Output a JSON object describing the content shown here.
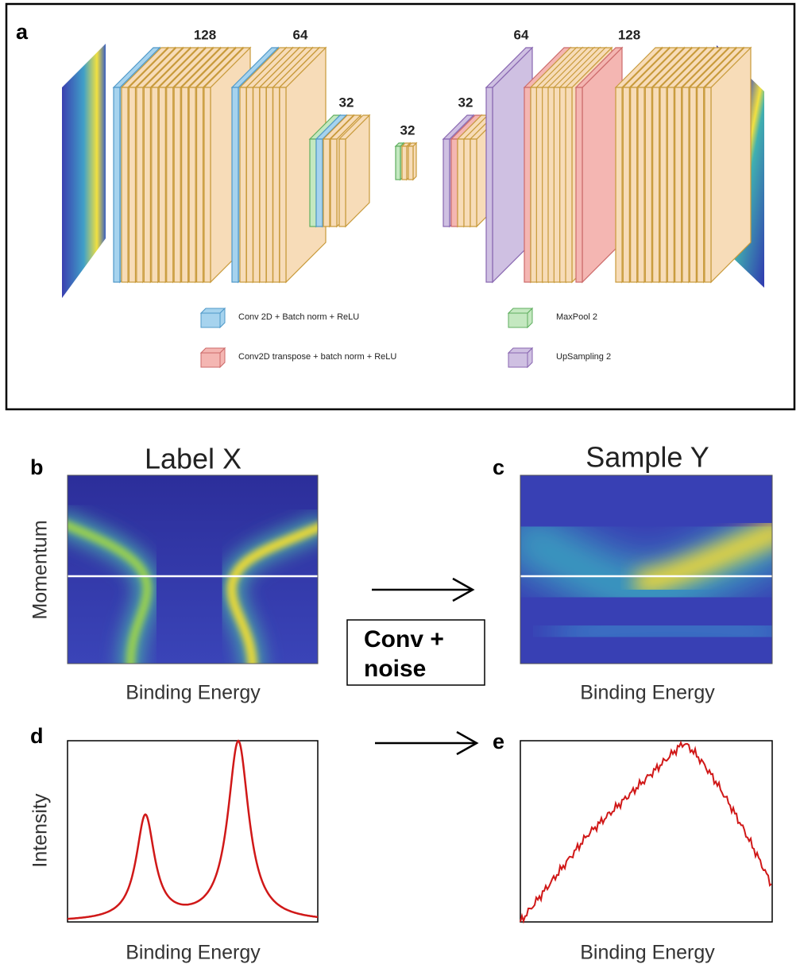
{
  "panel_a": {
    "label": "a",
    "block_sizes": [
      128,
      64,
      32,
      32,
      32,
      64,
      128
    ],
    "legend": [
      "Conv 2D + Batch norm + ReLU",
      "Conv2D transpose + batch norm + ReLU",
      "MaxPool 2",
      "UpSampling 2"
    ]
  },
  "panel_b": {
    "label": "b",
    "title": "Label X",
    "y_label": "Momentum",
    "x_label": "Binding Energy"
  },
  "panel_c": {
    "label": "c",
    "title": "Sample Y",
    "x_label": "Binding Energy"
  },
  "operation": {
    "lines": [
      "Conv +",
      "noise"
    ]
  },
  "panel_d": {
    "label": "d",
    "y_label": "Intensity",
    "x_label": "Binding Energy"
  },
  "panel_e": {
    "label": "e",
    "x_label": "Binding Energy"
  }
}
